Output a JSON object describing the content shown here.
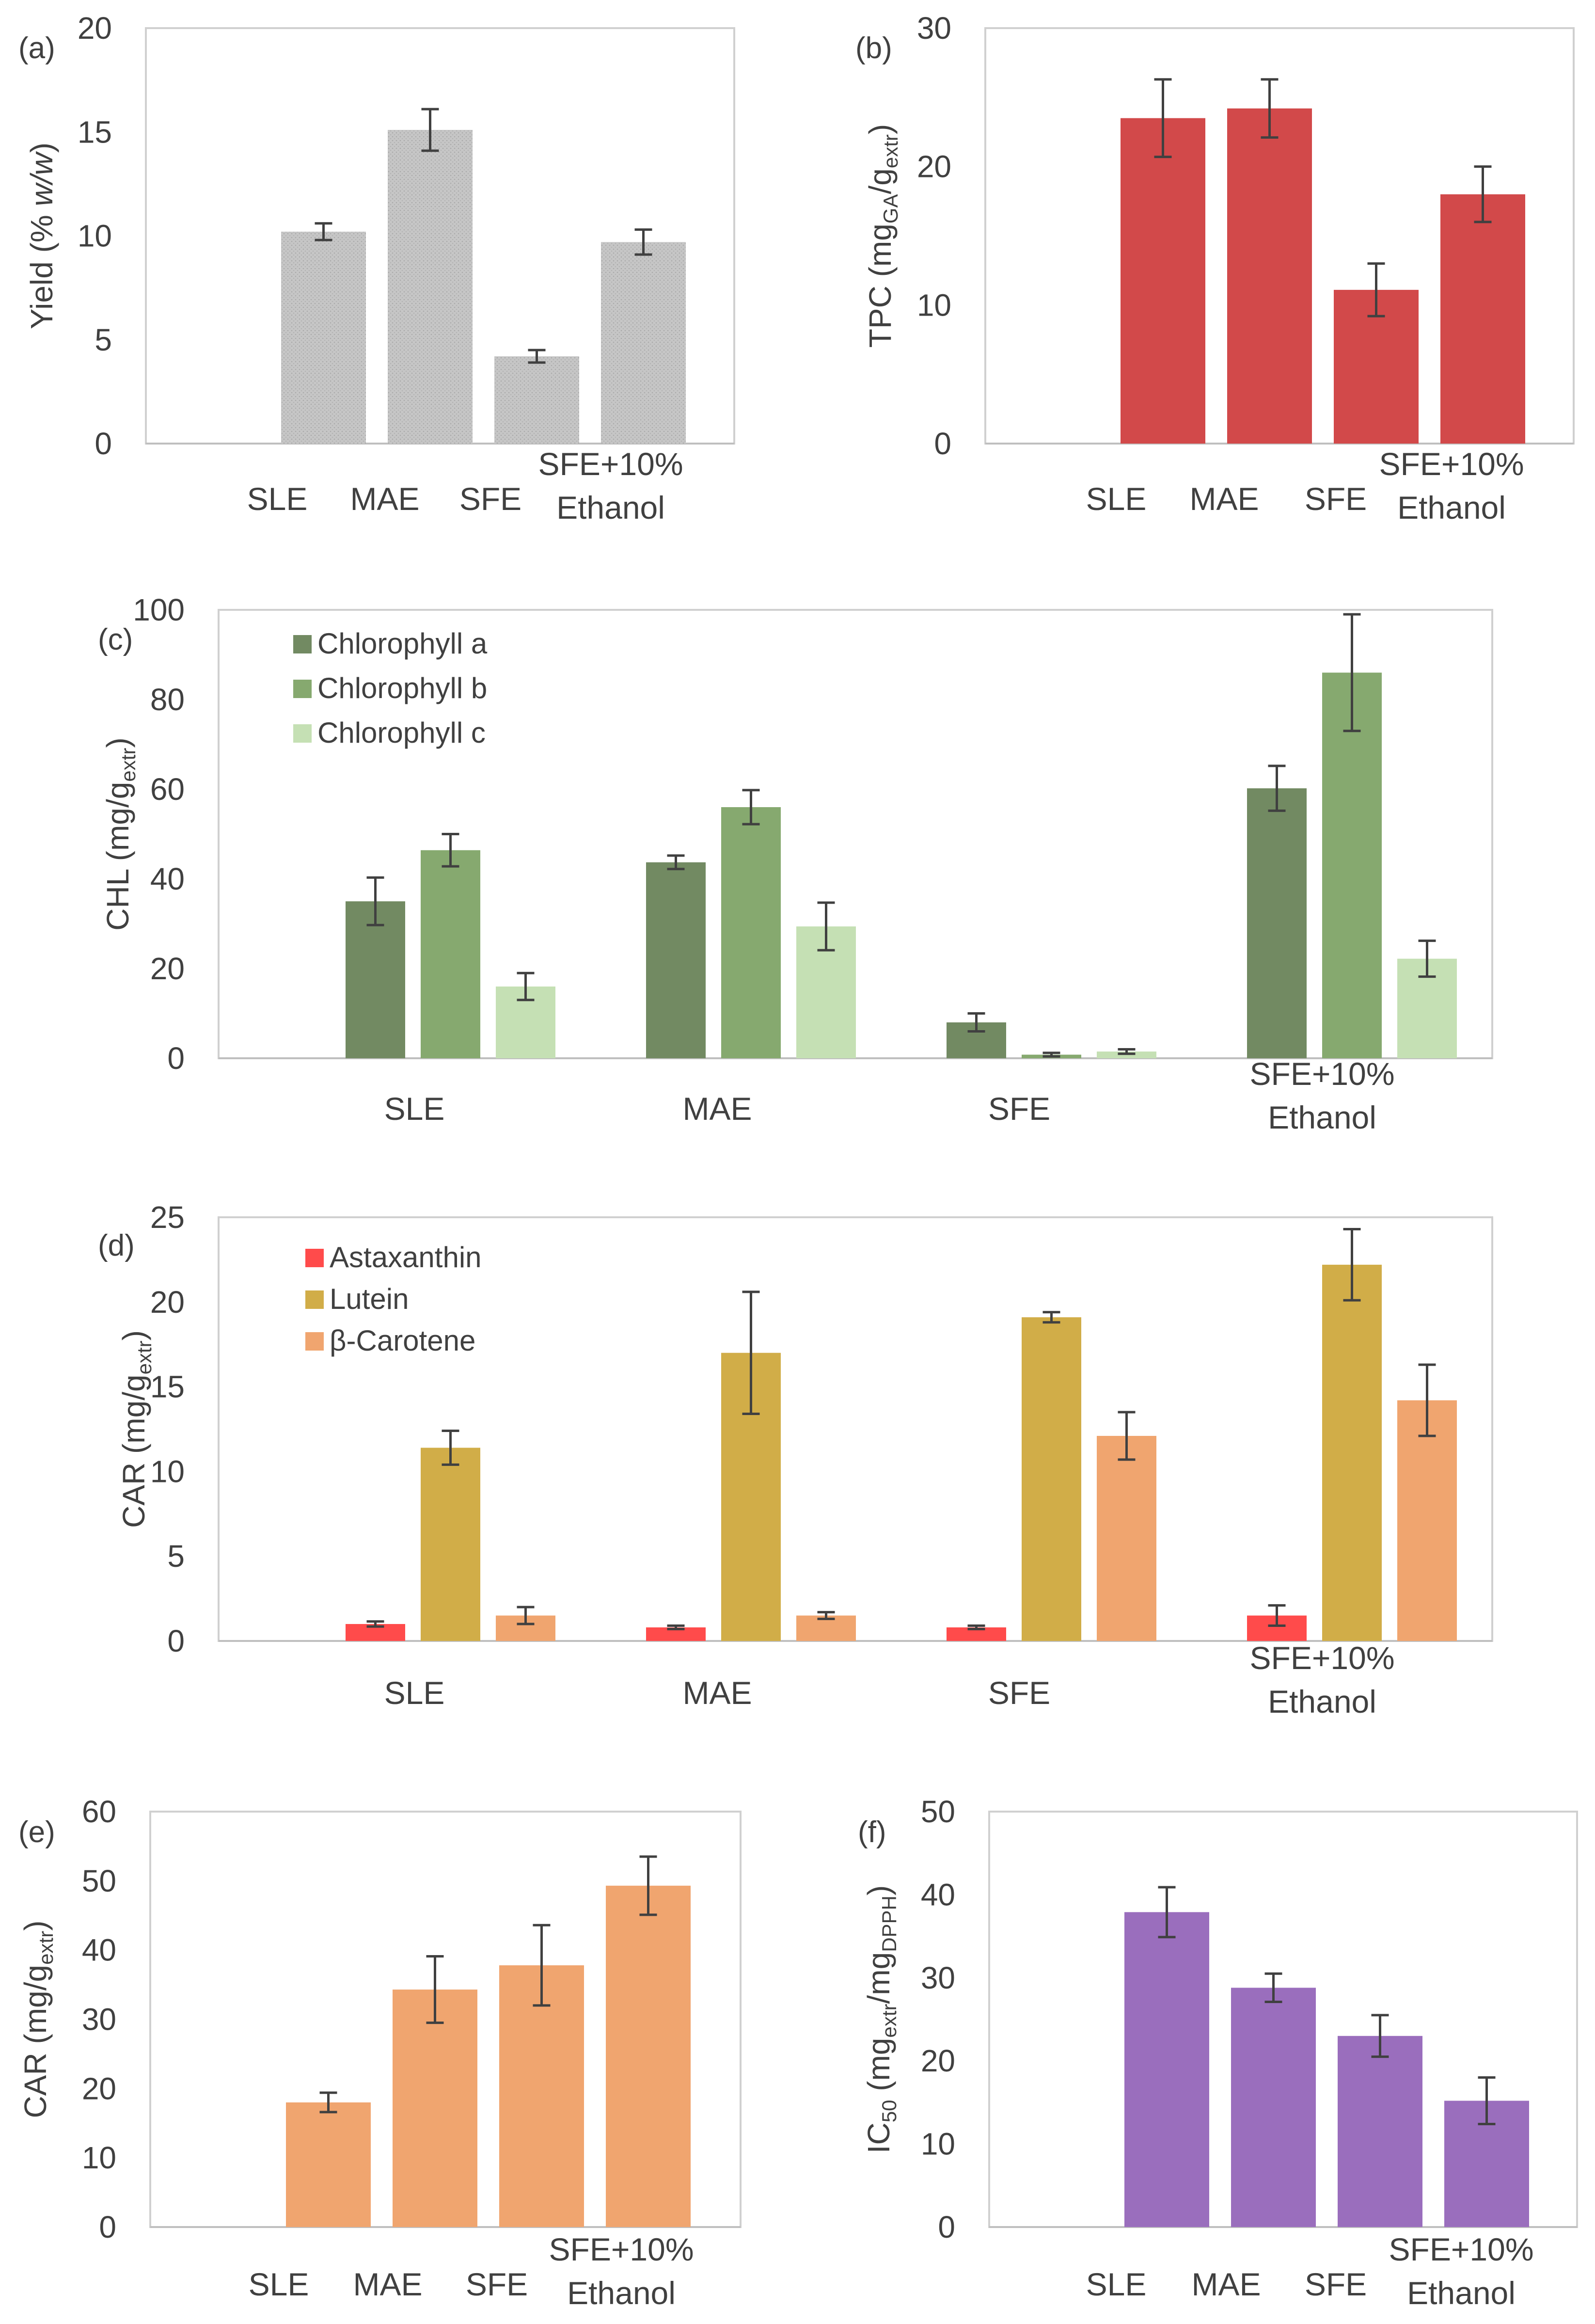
{
  "chart_data": [
    {
      "id": "a",
      "type": "bar",
      "panel_label": "(a)",
      "categories": [
        "SLE",
        "MAE",
        "SFE",
        "SFE+10%\nEthanol"
      ],
      "series": [
        {
          "name": "Yield",
          "color": "#bfbfbf",
          "values": [
            10.2,
            15.1,
            4.2,
            9.7
          ],
          "errors": [
            0.4,
            1.0,
            0.3,
            0.6
          ]
        }
      ],
      "ylim": [
        0,
        20
      ],
      "yticks": [
        0,
        5,
        10,
        15,
        20
      ],
      "ylabel": {
        "main": "Yield (% ",
        "italic": "w/w",
        "end": ")"
      },
      "legend": null
    },
    {
      "id": "b",
      "type": "bar",
      "panel_label": "(b)",
      "categories": [
        "SLE",
        "MAE",
        "SFE",
        "SFE+10%\nEthanol"
      ],
      "series": [
        {
          "name": "TPC",
          "color": "#d2494a",
          "values": [
            23.5,
            24.2,
            11.1,
            18.0
          ],
          "errors": [
            2.8,
            2.1,
            1.9,
            2.0
          ]
        }
      ],
      "ylim": [
        0,
        30
      ],
      "yticks": [
        0,
        10,
        20,
        30
      ],
      "ylabel": {
        "main": "TPC (mg",
        "sub1": "GA",
        "mid": "/g",
        "sub2": "extr",
        "end": ")"
      },
      "legend": null
    },
    {
      "id": "c",
      "type": "bar",
      "panel_label": "(c)",
      "categories": [
        "SLE",
        "MAE",
        "SFE",
        "SFE+10%\nEthanol"
      ],
      "series": [
        {
          "name": "Chlorophyll a",
          "color": "#728a62",
          "values": [
            35.0,
            43.7,
            8.0,
            60.2
          ],
          "errors": [
            5.3,
            1.5,
            2.0,
            5.0
          ]
        },
        {
          "name": "Chlorophyll b",
          "color": "#86a96f",
          "values": [
            46.4,
            56.0,
            0.8,
            86.0
          ],
          "errors": [
            3.6,
            3.8,
            0.4,
            13.0
          ]
        },
        {
          "name": "Chlorophyll c",
          "color": "#c5e0b4",
          "values": [
            16.0,
            29.4,
            1.5,
            22.2
          ],
          "errors": [
            3.0,
            5.3,
            0.5,
            4.0
          ]
        }
      ],
      "ylim": [
        0,
        100
      ],
      "yticks": [
        0,
        20,
        40,
        60,
        80,
        100
      ],
      "ylabel": {
        "main": "CHL (mg/g",
        "sub2": "extr",
        "end": ")"
      },
      "legend": "top-left"
    },
    {
      "id": "d",
      "type": "bar",
      "panel_label": "(d)",
      "categories": [
        "SLE",
        "MAE",
        "SFE",
        "SFE+10%\nEthanol"
      ],
      "series": [
        {
          "name": "Astaxanthin",
          "color": "#ff4b4b",
          "values": [
            1.0,
            0.8,
            0.8,
            1.5
          ],
          "errors": [
            0.15,
            0.1,
            0.1,
            0.6
          ]
        },
        {
          "name": "Lutein",
          "color": "#d1ad48",
          "values": [
            11.4,
            17.0,
            19.1,
            22.2
          ],
          "errors": [
            1.0,
            3.6,
            0.3,
            2.1
          ]
        },
        {
          "name": "β-Carotene",
          "color": "#f0a56f",
          "values": [
            1.5,
            1.5,
            12.1,
            14.2
          ],
          "errors": [
            0.5,
            0.2,
            1.4,
            2.1
          ]
        }
      ],
      "ylim": [
        0,
        25
      ],
      "yticks": [
        0,
        5,
        10,
        15,
        20,
        25
      ],
      "ylabel": {
        "main": "CAR (mg/g",
        "sub2": "extr",
        "end": ")"
      },
      "legend": "top-left"
    },
    {
      "id": "e",
      "type": "bar",
      "panel_label": "(e)",
      "categories": [
        "SLE",
        "MAE",
        "SFE",
        "SFE+10%\nEthanol"
      ],
      "series": [
        {
          "name": "CAR",
          "color": "#f0a56f",
          "values": [
            18.0,
            34.3,
            37.8,
            49.3
          ],
          "errors": [
            1.4,
            4.8,
            5.8,
            4.2
          ]
        }
      ],
      "ylim": [
        0,
        60
      ],
      "yticks": [
        0,
        10,
        20,
        30,
        40,
        50,
        60
      ],
      "ylabel": {
        "main": "CAR (mg/g",
        "sub2": "extr",
        "end": ")"
      },
      "legend": null
    },
    {
      "id": "f",
      "type": "bar",
      "panel_label": "(f)",
      "categories": [
        "SLE",
        "MAE",
        "SFE",
        "SFE+10%\nEthanol"
      ],
      "series": [
        {
          "name": "IC50",
          "color": "#9a6ebd",
          "values": [
            37.9,
            28.8,
            23.0,
            15.2
          ],
          "errors": [
            3.0,
            1.7,
            2.5,
            2.8
          ]
        }
      ],
      "ylim": [
        0,
        50
      ],
      "yticks": [
        0,
        10,
        20,
        30,
        40,
        50
      ],
      "ylabel": {
        "main": "IC",
        "sub1": "50",
        "mid": " (mg",
        "sub2": "extr",
        "mid2": "/mg",
        "sub3": "DPPH",
        "end": ")"
      },
      "legend": null
    }
  ]
}
